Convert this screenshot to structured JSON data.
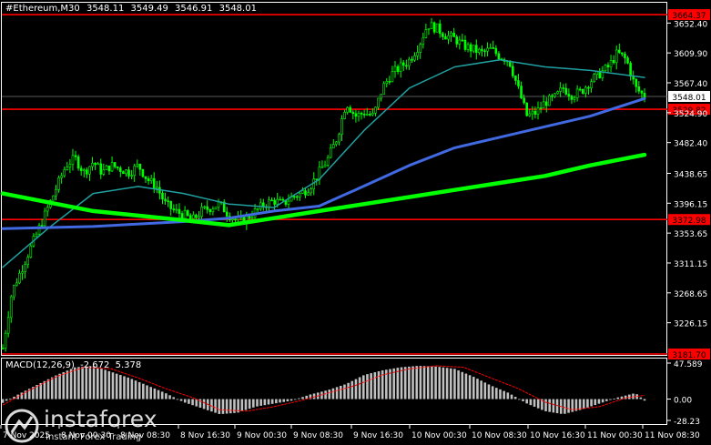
{
  "header": {
    "symbol": "#Ethereum,M30",
    "open": "3548.11",
    "high": "3549.49",
    "low": "3546.91",
    "close": "3548.01"
  },
  "macd_header": {
    "label": "MACD(12,26,9)",
    "macd": "-2.672",
    "signal": "5.378"
  },
  "price_axis": [
    "3652.40",
    "3609.90",
    "3567.40",
    "3524.90",
    "3482.40",
    "3438.65",
    "3396.15",
    "3353.65",
    "3311.15",
    "3268.65",
    "3226.15"
  ],
  "macd_axis": [
    "47.589",
    "0.00",
    "-28.23"
  ],
  "time_axis": [
    "7 Nov 2025",
    "8 Nov 00:30",
    "8 Nov 08:30",
    "8 Nov 16:30",
    "9 Nov 00:30",
    "9 Nov 08:30",
    "9 Nov 16:30",
    "10 Nov 00:30",
    "10 Nov 08:30",
    "10 Nov 16:30",
    "11 Nov 00:30",
    "11 Nov 08:30"
  ],
  "current_price": {
    "value": "3548.01",
    "color": "#ffffff"
  },
  "levels": [
    {
      "value": "3664.37",
      "color": "#ff0000"
    },
    {
      "value": "3529.82",
      "color": "#ff0000"
    },
    {
      "value": "3372.98",
      "color": "#ff0000"
    },
    {
      "value": "3181.70",
      "color": "#ff0000"
    }
  ],
  "watermark": {
    "brand": "instaforex",
    "tagline": "Instant Forex Trading"
  },
  "colors": {
    "background": "#000000",
    "candles": "#00ff00",
    "ma_slow": "#00ff00",
    "ma_mid": "#4169e1",
    "ma_fast": "#20a0a0",
    "macd_hist": "#c0c0c0",
    "macd_signal": "#ff0000",
    "levels": "#ff0000"
  },
  "chart_data": {
    "type": "candlestick",
    "symbol": "#Ethereum",
    "timeframe": "M30",
    "ylim": [
      3181.7,
      3680
    ],
    "x_range": [
      "7 Nov 2025",
      "11 Nov 08:30"
    ],
    "close_path": [
      [
        0,
        3190
      ],
      [
        2,
        3270
      ],
      [
        4,
        3300
      ],
      [
        6,
        3330
      ],
      [
        8,
        3360
      ],
      [
        10,
        3390
      ],
      [
        12,
        3420
      ],
      [
        14,
        3450
      ],
      [
        16,
        3460
      ],
      [
        18,
        3440
      ],
      [
        20,
        3455
      ],
      [
        22,
        3440
      ],
      [
        24,
        3450
      ],
      [
        26,
        3445
      ],
      [
        28,
        3440
      ],
      [
        30,
        3450
      ],
      [
        32,
        3430
      ],
      [
        34,
        3420
      ],
      [
        36,
        3395
      ],
      [
        38,
        3385
      ],
      [
        40,
        3380
      ],
      [
        42,
        3372
      ],
      [
        44,
        3385
      ],
      [
        46,
        3390
      ],
      [
        48,
        3395
      ],
      [
        50,
        3380
      ],
      [
        52,
        3370
      ],
      [
        54,
        3375
      ],
      [
        56,
        3385
      ],
      [
        58,
        3395
      ],
      [
        60,
        3400
      ],
      [
        62,
        3395
      ],
      [
        64,
        3405
      ],
      [
        66,
        3410
      ],
      [
        68,
        3420
      ],
      [
        70,
        3440
      ],
      [
        72,
        3460
      ],
      [
        74,
        3490
      ],
      [
        76,
        3540
      ],
      [
        78,
        3520
      ],
      [
        80,
        3525
      ],
      [
        82,
        3520
      ],
      [
        84,
        3560
      ],
      [
        86,
        3580
      ],
      [
        88,
        3590
      ],
      [
        90,
        3600
      ],
      [
        92,
        3620
      ],
      [
        94,
        3650
      ],
      [
        96,
        3645
      ],
      [
        98,
        3635
      ],
      [
        100,
        3630
      ],
      [
        102,
        3620
      ],
      [
        104,
        3615
      ],
      [
        106,
        3610
      ],
      [
        108,
        3615
      ],
      [
        110,
        3605
      ],
      [
        112,
        3600
      ],
      [
        114,
        3560
      ],
      [
        116,
        3520
      ],
      [
        118,
        3525
      ],
      [
        120,
        3540
      ],
      [
        122,
        3545
      ],
      [
        124,
        3560
      ],
      [
        126,
        3550
      ],
      [
        128,
        3555
      ],
      [
        130,
        3570
      ],
      [
        132,
        3580
      ],
      [
        134,
        3590
      ],
      [
        136,
        3610
      ],
      [
        138,
        3600
      ],
      [
        140,
        3560
      ],
      [
        142,
        3548
      ]
    ],
    "ma_slow": [
      [
        0,
        3410
      ],
      [
        20,
        3385
      ],
      [
        40,
        3372
      ],
      [
        50,
        3365
      ],
      [
        60,
        3375
      ],
      [
        70,
        3385
      ],
      [
        80,
        3395
      ],
      [
        90,
        3405
      ],
      [
        100,
        3415
      ],
      [
        110,
        3425
      ],
      [
        120,
        3435
      ],
      [
        130,
        3450
      ],
      [
        142,
        3465
      ]
    ],
    "ma_mid": [
      [
        0,
        3360
      ],
      [
        20,
        3363
      ],
      [
        40,
        3370
      ],
      [
        50,
        3375
      ],
      [
        60,
        3385
      ],
      [
        70,
        3392
      ],
      [
        78,
        3415
      ],
      [
        90,
        3450
      ],
      [
        100,
        3475
      ],
      [
        110,
        3490
      ],
      [
        120,
        3505
      ],
      [
        130,
        3520
      ],
      [
        142,
        3545
      ]
    ],
    "ma_fast": [
      [
        0,
        3305
      ],
      [
        10,
        3360
      ],
      [
        20,
        3410
      ],
      [
        30,
        3420
      ],
      [
        40,
        3410
      ],
      [
        50,
        3395
      ],
      [
        60,
        3390
      ],
      [
        70,
        3430
      ],
      [
        80,
        3500
      ],
      [
        90,
        3560
      ],
      [
        100,
        3590
      ],
      [
        110,
        3600
      ],
      [
        120,
        3590
      ],
      [
        130,
        3585
      ],
      [
        142,
        3575
      ]
    ],
    "macd_histogram": [
      [
        0,
        -5
      ],
      [
        4,
        8
      ],
      [
        8,
        20
      ],
      [
        12,
        32
      ],
      [
        16,
        42
      ],
      [
        20,
        44
      ],
      [
        24,
        36
      ],
      [
        28,
        28
      ],
      [
        32,
        18
      ],
      [
        36,
        8
      ],
      [
        40,
        -4
      ],
      [
        44,
        -12
      ],
      [
        48,
        -20
      ],
      [
        52,
        -18
      ],
      [
        56,
        -10
      ],
      [
        60,
        -6
      ],
      [
        64,
        -2
      ],
      [
        68,
        6
      ],
      [
        72,
        12
      ],
      [
        76,
        20
      ],
      [
        80,
        32
      ],
      [
        84,
        38
      ],
      [
        88,
        42
      ],
      [
        92,
        44
      ],
      [
        96,
        43
      ],
      [
        100,
        40
      ],
      [
        104,
        30
      ],
      [
        108,
        18
      ],
      [
        112,
        8
      ],
      [
        116,
        -6
      ],
      [
        120,
        -16
      ],
      [
        124,
        -20
      ],
      [
        128,
        -14
      ],
      [
        132,
        -6
      ],
      [
        136,
        2
      ],
      [
        140,
        8
      ],
      [
        142,
        -2
      ]
    ],
    "macd_signal": [
      [
        0,
        -8
      ],
      [
        6,
        12
      ],
      [
        12,
        30
      ],
      [
        18,
        42
      ],
      [
        24,
        40
      ],
      [
        30,
        28
      ],
      [
        36,
        14
      ],
      [
        42,
        2
      ],
      [
        48,
        -14
      ],
      [
        54,
        -16
      ],
      [
        60,
        -10
      ],
      [
        66,
        -2
      ],
      [
        72,
        8
      ],
      [
        78,
        18
      ],
      [
        84,
        32
      ],
      [
        90,
        40
      ],
      [
        96,
        44
      ],
      [
        102,
        42
      ],
      [
        108,
        28
      ],
      [
        114,
        14
      ],
      [
        120,
        -4
      ],
      [
        126,
        -14
      ],
      [
        132,
        -10
      ],
      [
        138,
        2
      ],
      [
        142,
        5
      ]
    ]
  }
}
